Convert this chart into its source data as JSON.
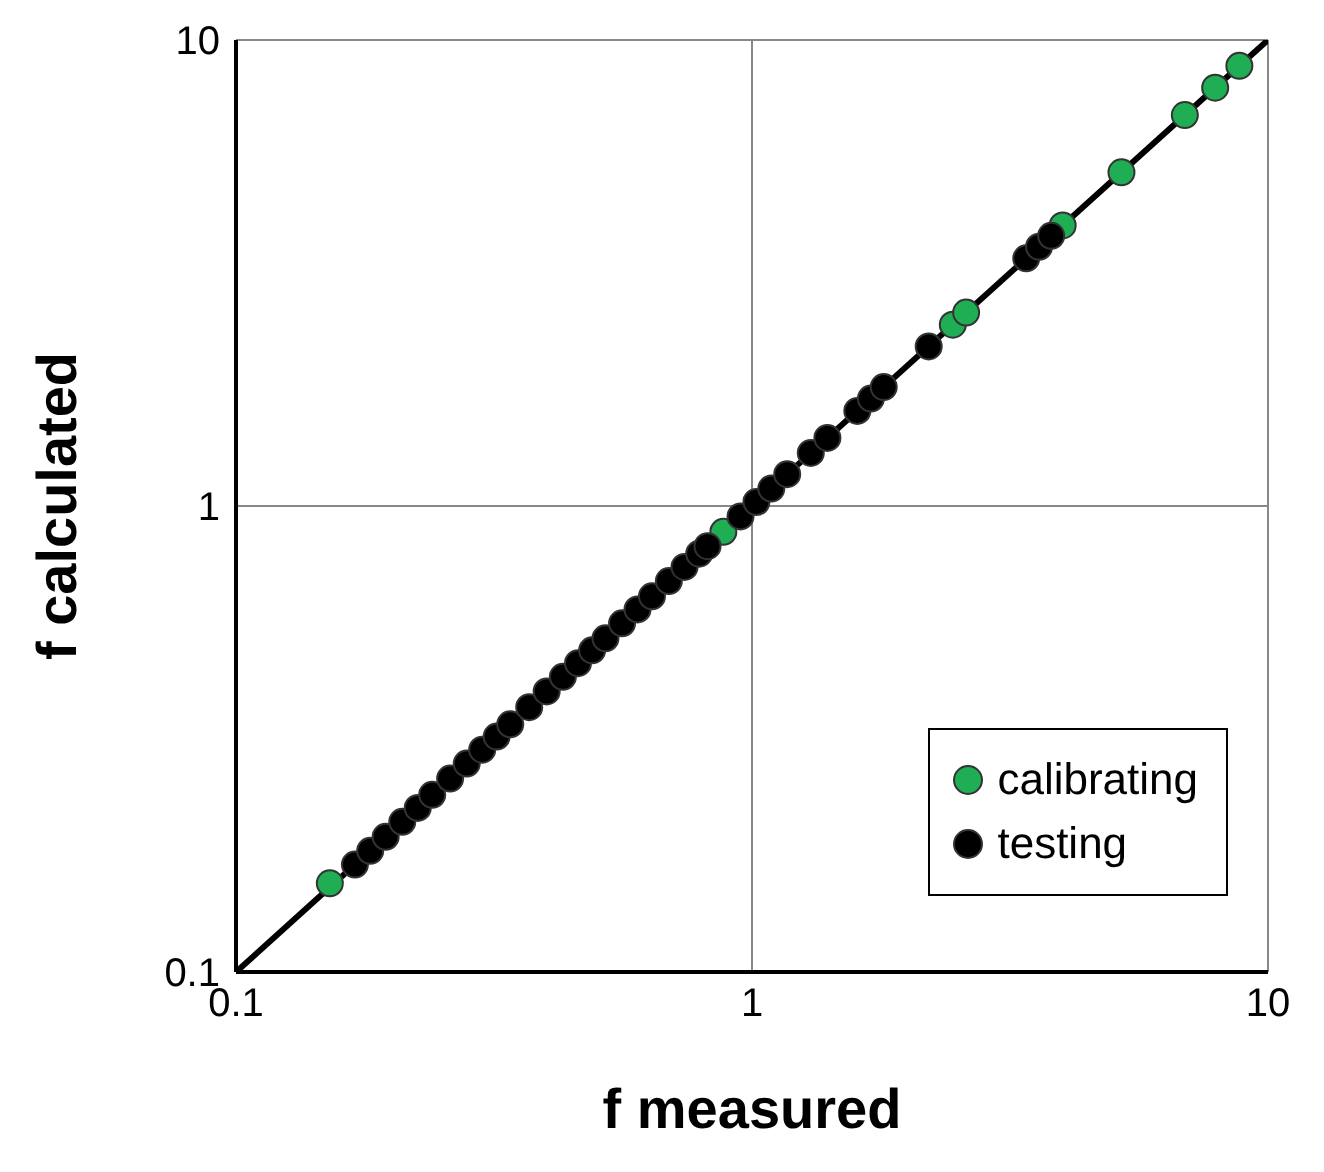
{
  "chart_data": {
    "type": "scatter",
    "xlabel": "f measured",
    "ylabel": "f calculated",
    "log": "xy",
    "xlim": [
      0.1,
      10
    ],
    "ylim": [
      0.1,
      10
    ],
    "xticks": [
      0.1,
      1,
      10
    ],
    "yticks": [
      0.1,
      1,
      10
    ],
    "grid": true,
    "legend": "bottom right",
    "marker": "circle",
    "series": [
      {
        "type": "line",
        "color": "#000000",
        "x": [
          0.1,
          10
        ],
        "values": [
          0.1,
          10
        ],
        "marker": "none"
      },
      {
        "name": "calibrating",
        "color": "#1fae54",
        "x": [
          0.152,
          0.88,
          2.45,
          2.6,
          4.0,
          5.2,
          6.9,
          7.9,
          8.8
        ],
        "values": [
          0.155,
          0.88,
          2.45,
          2.6,
          4.0,
          5.2,
          6.9,
          7.9,
          8.8
        ]
      },
      {
        "name": "testing",
        "color": "#000000",
        "x": [
          0.17,
          0.182,
          0.195,
          0.21,
          0.225,
          0.24,
          0.26,
          0.28,
          0.3,
          0.32,
          0.34,
          0.37,
          0.4,
          0.43,
          0.46,
          0.49,
          0.52,
          0.56,
          0.6,
          0.64,
          0.69,
          0.74,
          0.79,
          0.82,
          0.95,
          1.02,
          1.09,
          1.17,
          1.3,
          1.4,
          1.6,
          1.7,
          1.8,
          2.2,
          3.4,
          3.6,
          3.8
        ],
        "values": [
          0.17,
          0.182,
          0.195,
          0.21,
          0.225,
          0.24,
          0.26,
          0.28,
          0.3,
          0.32,
          0.34,
          0.37,
          0.4,
          0.43,
          0.46,
          0.49,
          0.52,
          0.56,
          0.6,
          0.64,
          0.69,
          0.74,
          0.79,
          0.82,
          0.95,
          1.02,
          1.09,
          1.17,
          1.3,
          1.4,
          1.6,
          1.7,
          1.8,
          2.2,
          3.4,
          3.6,
          3.8
        ]
      }
    ]
  }
}
